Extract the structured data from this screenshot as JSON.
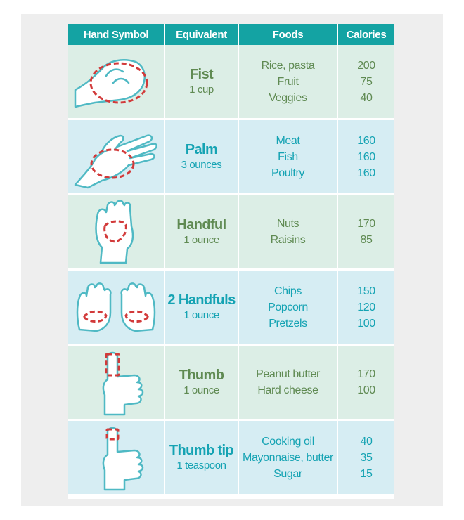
{
  "headers": {
    "hand_symbol": "Hand Symbol",
    "equivalent": "Equivalent",
    "foods": "Foods",
    "calories": "Calories"
  },
  "colors": {
    "header": "#14a3a3",
    "green_text": "#5f8a52",
    "blue_text": "#15a3b3",
    "dashed_mark": "#d23a3a"
  },
  "rows": [
    {
      "icon": "fist-icon",
      "name": "Fist",
      "amount": "1 cup",
      "foods": [
        "Rice, pasta",
        "Fruit",
        "Veggies"
      ],
      "calories": [
        "200",
        "75",
        "40"
      ]
    },
    {
      "icon": "palm-icon",
      "name": "Palm",
      "amount": "3 ounces",
      "foods": [
        "Meat",
        "Fish",
        "Poultry"
      ],
      "calories": [
        "160",
        "160",
        "160"
      ]
    },
    {
      "icon": "handful-icon",
      "name": "Handful",
      "amount": "1 ounce",
      "foods": [
        "Nuts",
        "Raisins"
      ],
      "calories": [
        "170",
        "85"
      ]
    },
    {
      "icon": "two-handfuls-icon",
      "name": "2 Handfuls",
      "amount": "1 ounce",
      "foods": [
        "Chips",
        "Popcorn",
        "Pretzels"
      ],
      "calories": [
        "150",
        "120",
        "100"
      ]
    },
    {
      "icon": "thumb-icon",
      "name": "Thumb",
      "amount": "1 ounce",
      "foods": [
        "Peanut butter",
        "Hard cheese"
      ],
      "calories": [
        "170",
        "100"
      ]
    },
    {
      "icon": "thumb-tip-icon",
      "name": "Thumb tip",
      "amount": "1 teaspoon",
      "foods": [
        "Cooking oil",
        "Mayonnaise, butter",
        "Sugar"
      ],
      "calories": [
        "40",
        "35",
        "15"
      ]
    }
  ]
}
